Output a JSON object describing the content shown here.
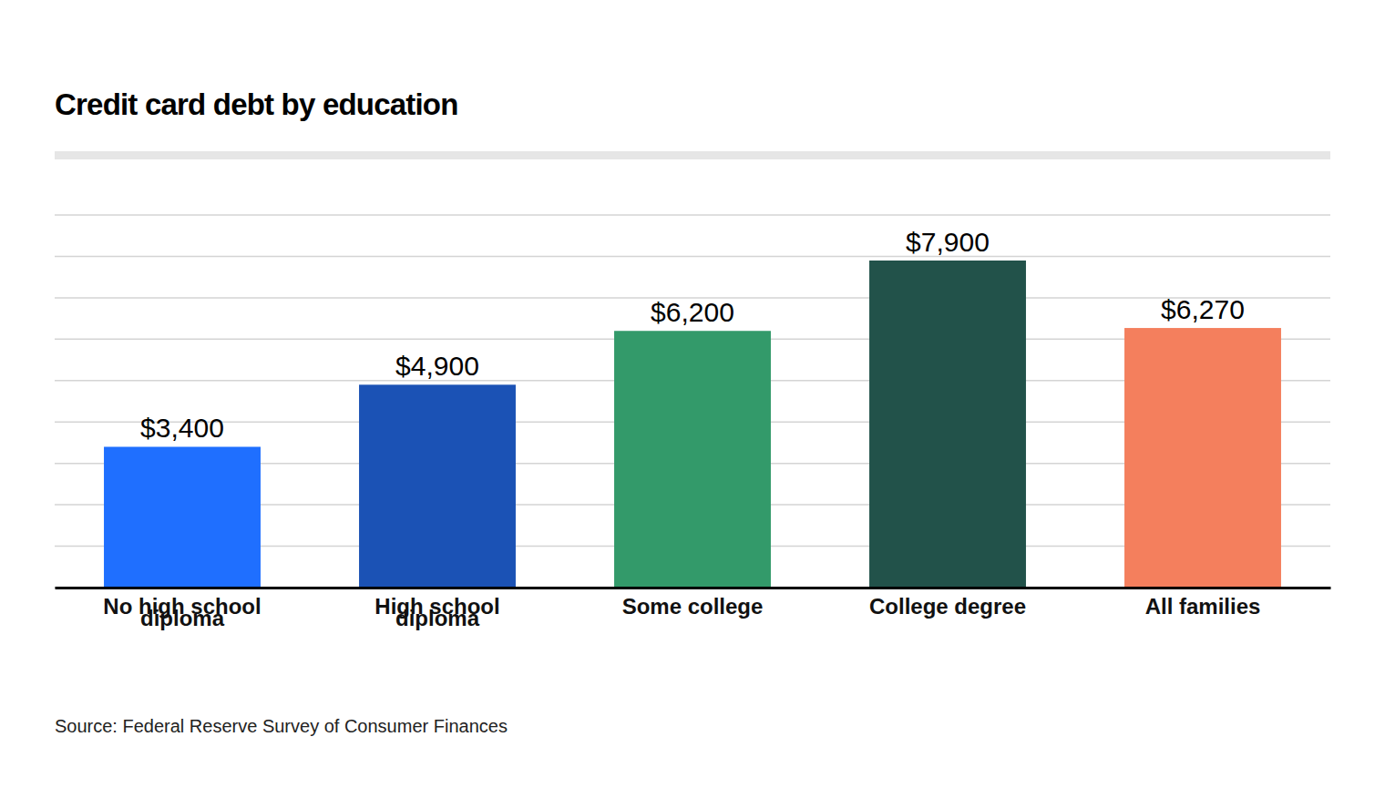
{
  "chart_data": {
    "type": "bar",
    "title": "Credit card debt by education",
    "source": "Source: Federal Reserve Survey of Consumer Finances",
    "categories": [
      "No high school diploma",
      "High school diploma",
      "Some college",
      "College degree",
      "All families"
    ],
    "values": [
      3400,
      4900,
      6200,
      7900,
      6270
    ],
    "value_labels": [
      "$3,400",
      "$4,900",
      "$6,200",
      "$7,900",
      "$6,270"
    ],
    "colors": [
      "#1f6fff",
      "#1b52b5",
      "#339a6a",
      "#22524a",
      "#f47f5d"
    ],
    "ylim": [
      0,
      9000
    ],
    "yticks": [
      0,
      1000,
      2000,
      3000,
      4000,
      5000,
      6000,
      7000,
      8000,
      9000
    ],
    "grid": true,
    "data_labels": true,
    "tick_labels": false
  }
}
